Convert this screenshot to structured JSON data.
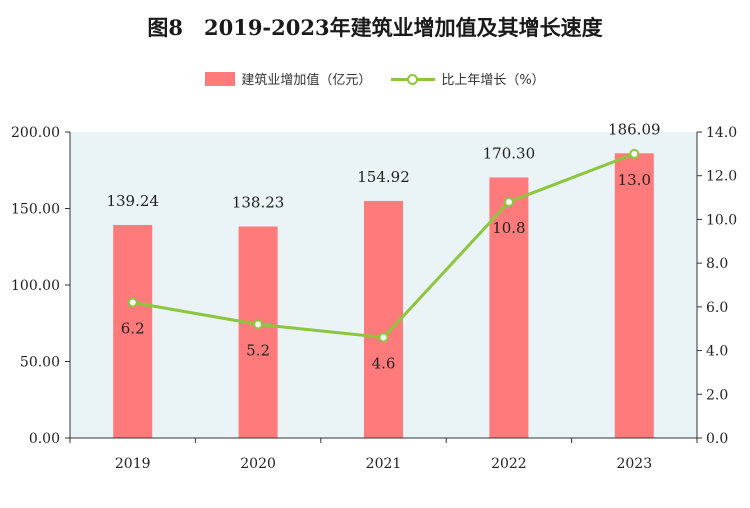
{
  "title": "图8　2019-2023年建筑业增加值及其增长速度",
  "legend": {
    "bar_label": "建筑业增加值（亿元）",
    "line_label": "比上年增长（%）"
  },
  "colors": {
    "bar": "#ff7b7b",
    "line": "#8cc63f",
    "plot_bg": "#eaf3f6"
  },
  "chart_data": {
    "type": "bar",
    "categories": [
      "2019",
      "2020",
      "2021",
      "2022",
      "2023"
    ],
    "series": [
      {
        "name": "建筑业增加值（亿元）",
        "type": "bar",
        "axis": "left",
        "values": [
          139.24,
          138.23,
          154.92,
          170.3,
          186.09
        ]
      },
      {
        "name": "比上年增长（%）",
        "type": "line",
        "axis": "right",
        "values": [
          6.2,
          5.2,
          4.6,
          10.8,
          13.0
        ]
      }
    ],
    "y_left": {
      "ylim": [
        0,
        200
      ],
      "ticks": [
        "0.00",
        "50.00",
        "100.00",
        "150.00",
        "200.00"
      ]
    },
    "y_right": {
      "ylim": [
        0,
        14
      ],
      "ticks": [
        "0.0",
        "2.0",
        "4.0",
        "6.0",
        "8.0",
        "10.0",
        "12.0",
        "14.0"
      ]
    },
    "bar_labels": [
      "139.24",
      "138.23",
      "154.92",
      "170.30",
      "186.09"
    ],
    "line_labels": [
      "6.2",
      "5.2",
      "4.6",
      "10.8",
      "13.0"
    ],
    "legend_position": "top-center",
    "grid": false
  }
}
